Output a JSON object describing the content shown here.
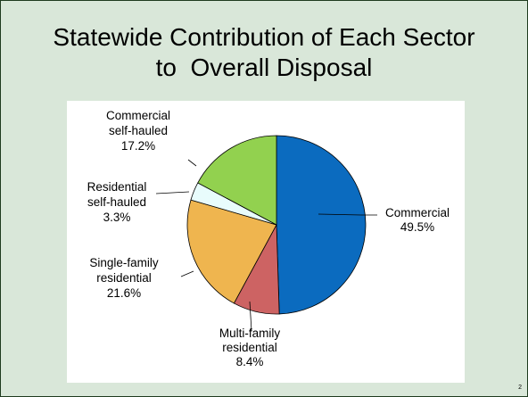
{
  "slide": {
    "title_line_1": "Statewide Contribution of Each Sector",
    "title_line_2": "to  Overall Disposal",
    "page_number": "2"
  },
  "colors": {
    "background": "#d9e7d9",
    "border": "#1f3b1f"
  },
  "chart_data": {
    "type": "pie",
    "title": "",
    "legend": "none",
    "slices": [
      {
        "label_lines": [
          "Commercial"
        ],
        "pct_label": "49.5%",
        "value": 49.5,
        "color": "#0b6bbf"
      },
      {
        "label_lines": [
          "Multi-family",
          "residential"
        ],
        "pct_label": "8.4%",
        "value": 8.4,
        "color": "#cd6363"
      },
      {
        "label_lines": [
          "Single-family",
          "residential"
        ],
        "pct_label": "21.6%",
        "value": 21.6,
        "color": "#efb54f"
      },
      {
        "label_lines": [
          "Residential",
          "self-hauled"
        ],
        "pct_label": "3.3%",
        "value": 3.3,
        "color": "#e8fcfc"
      },
      {
        "label_lines": [
          "Commercial",
          "self-hauled"
        ],
        "pct_label": "17.2%",
        "value": 17.2,
        "color": "#92d14f"
      }
    ]
  }
}
